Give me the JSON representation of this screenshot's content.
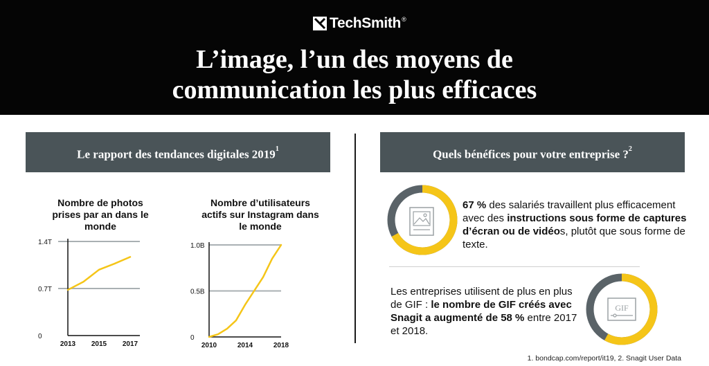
{
  "header": {
    "brand": "TechSmith",
    "brand_mark": "®",
    "title_line1": "L’image, l’un des moyens de",
    "title_line2": "communication les plus efficaces"
  },
  "left_panel": {
    "title": "Le rapport des tendances digitales 2019",
    "footnote_ref": "1"
  },
  "right_panel": {
    "title": "Quels bénéfices pour votre entreprise ?",
    "footnote_ref": "2",
    "stat1": {
      "percent": 67,
      "p1_bold": "67 %",
      "p2": " des salariés travaillent plus efficacement avec des ",
      "p3_bold": "instructions sous forme de captures d’écran ou de vidéo",
      "p4": "s, plutôt que sous forme de texte.",
      "icon": "image-document-icon"
    },
    "stat2": {
      "percent": 58,
      "p1": "Les entreprises utilisent de plus en plus de GIF : ",
      "p2_bold": "le nombre de GIF créés avec Snagit a augmenté de 58 %",
      "p3": " entre 2017 et 2018.",
      "icon_text": "GIF"
    }
  },
  "footnote": "1. bondcap.com/report/it19, 2. Snagit User Data",
  "colors": {
    "accent": "#f5c518",
    "header_bg": "#050505",
    "panel_bg": "#4a5458",
    "gridline": "#a9b0b3"
  },
  "chart_data": [
    {
      "type": "line",
      "title": "Nombre de photos prises par an dans le monde",
      "x": [
        2013,
        2014,
        2015,
        2016,
        2017
      ],
      "values": [
        0.68,
        0.8,
        0.98,
        1.07,
        1.17
      ],
      "xticks": [
        "2013",
        "2015",
        "2017"
      ],
      "xtick_values": [
        2013,
        2015,
        2017
      ],
      "yticks": [
        "0",
        "0.7T",
        "1.4T"
      ],
      "ytick_values": [
        0,
        0.7,
        1.4
      ],
      "ylim": [
        0,
        1.4
      ],
      "xlim": [
        2013,
        2017
      ],
      "grid": true
    },
    {
      "type": "line",
      "title": "Nombre d’utilisateurs actifs sur Instagram dans le monde",
      "x": [
        2010,
        2011,
        2012,
        2013,
        2014,
        2015,
        2016,
        2017,
        2018
      ],
      "values": [
        0.0,
        0.03,
        0.09,
        0.18,
        0.35,
        0.5,
        0.65,
        0.85,
        1.0
      ],
      "xticks": [
        "2010",
        "2014",
        "2018"
      ],
      "xtick_values": [
        2010,
        2014,
        2018
      ],
      "yticks": [
        "0",
        "0.5B",
        "1.0B"
      ],
      "ytick_values": [
        0,
        0.5,
        1.0
      ],
      "ylim": [
        0,
        1.0
      ],
      "xlim": [
        2010,
        2018
      ],
      "grid": true
    }
  ]
}
